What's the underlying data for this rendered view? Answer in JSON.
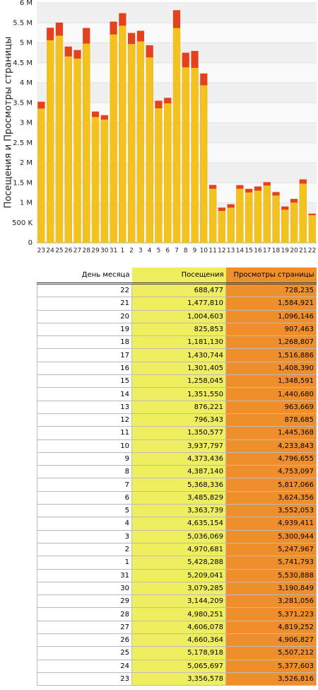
{
  "chart_data": {
    "type": "bar",
    "ylabel": "Посещения и Просмотры страницы",
    "categories": [
      "23",
      "24",
      "25",
      "26",
      "27",
      "28",
      "29",
      "30",
      "31",
      "1",
      "2",
      "3",
      "4",
      "5",
      "6",
      "7",
      "8",
      "9",
      "10",
      "11",
      "12",
      "13",
      "14",
      "15",
      "16",
      "17",
      "18",
      "19",
      "20",
      "21",
      "22"
    ],
    "series": [
      {
        "name": "Просмотры страницы",
        "color": "#e4421c",
        "values": [
          3526816,
          5377603,
          5507212,
          4906827,
          4819252,
          5371223,
          3281056,
          3190849,
          5530888,
          5741793,
          5247967,
          5300944,
          4939411,
          3552053,
          3624356,
          5817066,
          4753097,
          4796655,
          4233843,
          1445368,
          878685,
          963669,
          1440680,
          1348591,
          1408390,
          1516886,
          1268807,
          907463,
          1096146,
          1584921,
          728235
        ]
      },
      {
        "name": "Посещения",
        "color": "#f2c21e",
        "values": [
          3356578,
          5065697,
          5178918,
          4660364,
          4606078,
          4980251,
          3144209,
          3079285,
          5209041,
          5428288,
          4970681,
          5036069,
          4635154,
          3363739,
          3485829,
          5368336,
          4387140,
          4373436,
          3937797,
          1350577,
          796343,
          876221,
          1351550,
          1258045,
          1301405,
          1430744,
          1181130,
          825853,
          1004603,
          1477810,
          688477
        ]
      }
    ],
    "ylim": [
      0,
      6000000
    ],
    "yticks": [
      0,
      {
        "value": 500000,
        "label": "500 K"
      },
      {
        "value": 1000000,
        "label": "1 M"
      },
      {
        "value": 1500000,
        "label": "1.5 M"
      },
      {
        "value": 2000000,
        "label": "2 M"
      },
      {
        "value": 2500000,
        "label": "2.5 M"
      },
      {
        "value": 3000000,
        "label": "3 M"
      },
      {
        "value": 3500000,
        "label": "3.5 M"
      },
      {
        "value": 4000000,
        "label": "4 M"
      },
      {
        "value": 4500000,
        "label": "4.5 M"
      },
      {
        "value": 5000000,
        "label": "5 M"
      },
      {
        "value": 5500000,
        "label": "5.5 M"
      },
      {
        "value": 6000000,
        "label": "6 M"
      }
    ],
    "grid": true
  },
  "table": {
    "header": [
      "День месяца",
      "Посещения",
      "Просмотры страницы"
    ],
    "rows": [
      [
        "22",
        "688,477",
        "728,235"
      ],
      [
        "21",
        "1,477,810",
        "1,584,921"
      ],
      [
        "20",
        "1,004,603",
        "1,096,146"
      ],
      [
        "19",
        "825,853",
        "907,463"
      ],
      [
        "18",
        "1,181,130",
        "1,268,807"
      ],
      [
        "17",
        "1,430,744",
        "1,516,886"
      ],
      [
        "16",
        "1,301,405",
        "1,408,390"
      ],
      [
        "15",
        "1,258,045",
        "1,348,591"
      ],
      [
        "14",
        "1,351,550",
        "1,440,680"
      ],
      [
        "13",
        "876,221",
        "963,669"
      ],
      [
        "12",
        "796,343",
        "878,685"
      ],
      [
        "11",
        "1,350,577",
        "1,445,368"
      ],
      [
        "10",
        "3,937,797",
        "4,233,843"
      ],
      [
        "9",
        "4,373,436",
        "4,796,655"
      ],
      [
        "8",
        "4,387,140",
        "4,753,097"
      ],
      [
        "7",
        "5,368,336",
        "5,817,066"
      ],
      [
        "6",
        "3,485,829",
        "3,624,356"
      ],
      [
        "5",
        "3,363,739",
        "3,552,053"
      ],
      [
        "4",
        "4,635,154",
        "4,939,411"
      ],
      [
        "3",
        "5,036,069",
        "5,300,944"
      ],
      [
        "2",
        "4,970,681",
        "5,247,967"
      ],
      [
        "1",
        "5,428,288",
        "5,741,793"
      ],
      [
        "31",
        "5,209,041",
        "5,530,888"
      ],
      [
        "30",
        "3,079,285",
        "3,190,849"
      ],
      [
        "29",
        "3,144,209",
        "3,281,056"
      ],
      [
        "28",
        "4,980,251",
        "5,371,223"
      ],
      [
        "27",
        "4,606,078",
        "4,819,252"
      ],
      [
        "26",
        "4,660,364",
        "4,906,827"
      ],
      [
        "25",
        "5,178,918",
        "5,507,212"
      ],
      [
        "24",
        "5,065,697",
        "5,377,603"
      ],
      [
        "23",
        "3,356,578",
        "3,526,816"
      ]
    ]
  }
}
